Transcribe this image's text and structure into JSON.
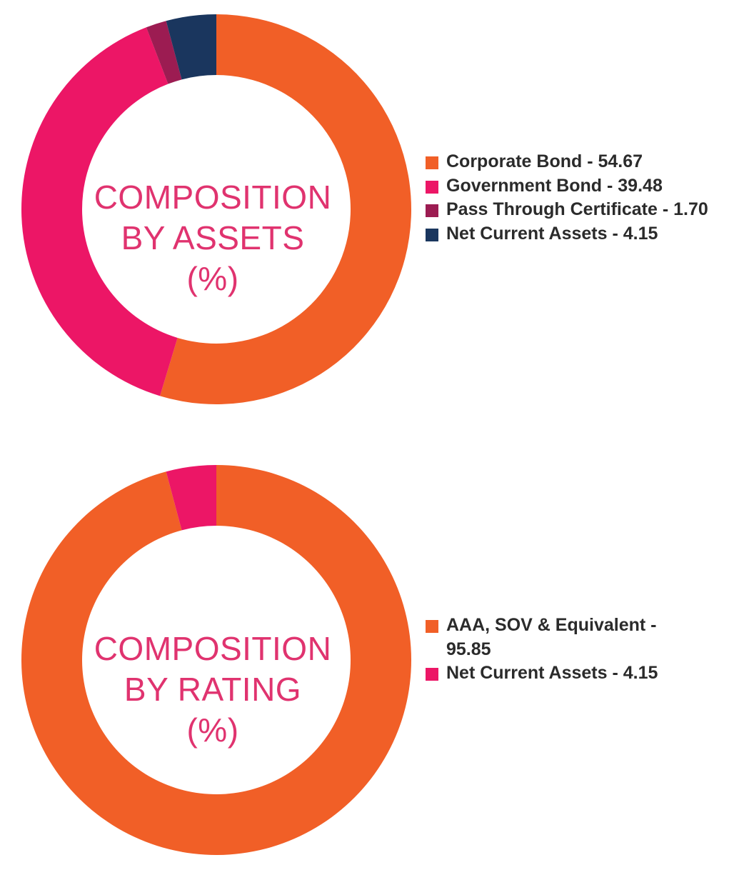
{
  "chart_data": [
    {
      "type": "pie",
      "title_lines": [
        "COMPOSITION",
        "BY ASSETS",
        "(%)"
      ],
      "slices": [
        {
          "label": "Corporate Bond - 54.67",
          "value": 54.67,
          "color": "#F15F27"
        },
        {
          "label": "Government Bond - 39.48",
          "value": 39.48,
          "color": "#EC1666"
        },
        {
          "label": "Pass Through Certificate - 1.70",
          "value": 1.7,
          "color": "#9C1C52"
        },
        {
          "label": "Net Current Assets - 4.15",
          "value": 4.15,
          "color": "#1A365E"
        }
      ],
      "legend_position": "right"
    },
    {
      "type": "pie",
      "title_lines": [
        "COMPOSITION",
        "BY RATING",
        "(%)"
      ],
      "slices": [
        {
          "label": "AAA, SOV & Equivalent - 95.85",
          "value": 95.85,
          "color": "#F15F27"
        },
        {
          "label": "Net Current Assets - 4.15",
          "value": 4.15,
          "color": "#EC1666"
        }
      ],
      "legend_position": "right"
    }
  ]
}
